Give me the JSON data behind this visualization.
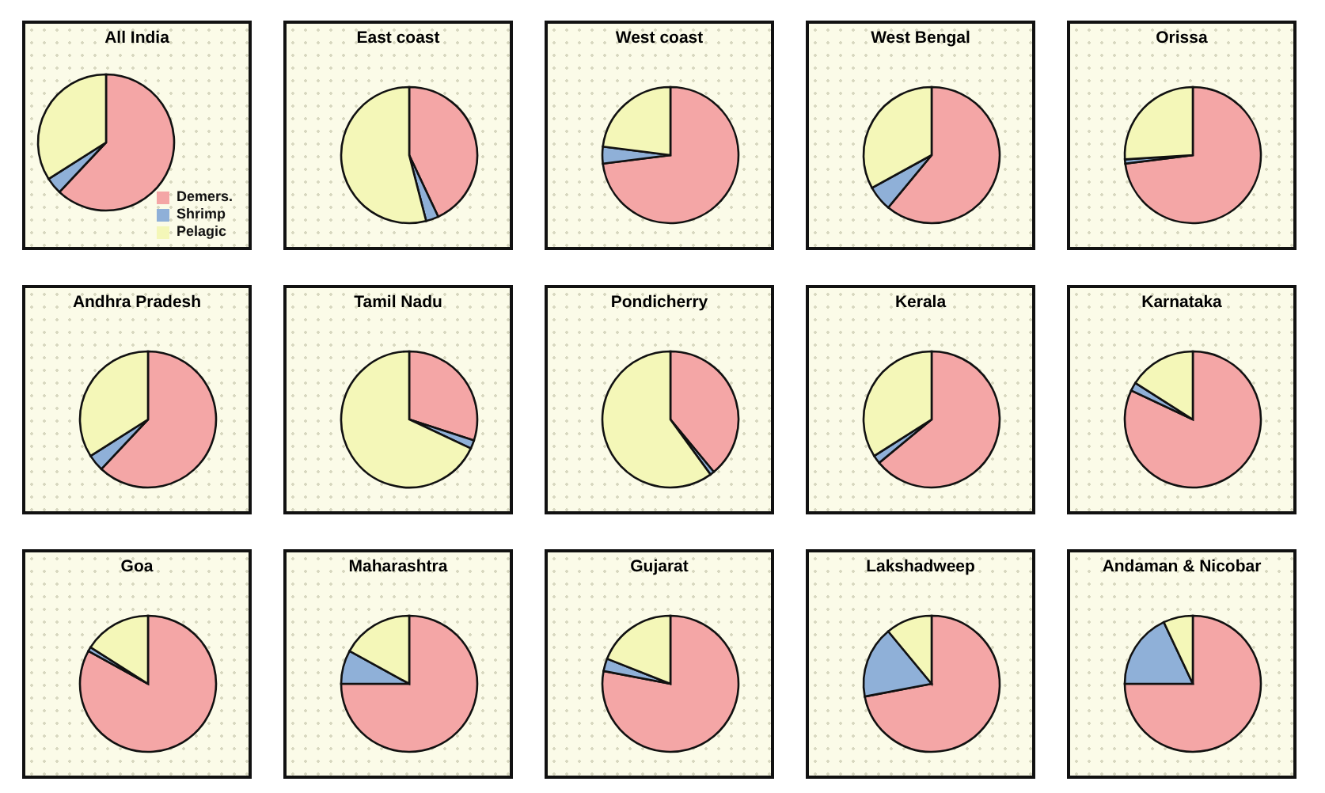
{
  "chart_data": [
    {
      "type": "pie",
      "title": "All India",
      "categories": [
        "Demers.",
        "Shrimp",
        "Pelagic"
      ],
      "values": [
        62,
        4,
        34
      ],
      "colors": [
        "#f4a6a6",
        "#8fb0d8",
        "#f4f7b8"
      ],
      "legend": "bottom right"
    },
    {
      "type": "pie",
      "title": "East coast",
      "values": [
        43,
        3,
        54
      ],
      "colors": [
        "#f4a6a6",
        "#8fb0d8",
        "#f4f7b8"
      ]
    },
    {
      "type": "pie",
      "title": "West coast",
      "values": [
        73,
        4,
        23
      ],
      "colors": [
        "#f4a6a6",
        "#8fb0d8",
        "#f4f7b8"
      ]
    },
    {
      "type": "pie",
      "title": "West Bengal",
      "values": [
        61,
        6,
        33
      ],
      "colors": [
        "#f4a6a6",
        "#8fb0d8",
        "#f4f7b8"
      ]
    },
    {
      "type": "pie",
      "title": "Orissa",
      "values": [
        73,
        1,
        26
      ],
      "colors": [
        "#f4a6a6",
        "#8fb0d8",
        "#f4f7b8"
      ]
    },
    {
      "type": "pie",
      "title": "Andhra Pradesh",
      "values": [
        62,
        4,
        34
      ],
      "colors": [
        "#f4a6a6",
        "#8fb0d8",
        "#f4f7b8"
      ]
    },
    {
      "type": "pie",
      "title": "Tamil Nadu",
      "values": [
        30,
        2,
        68
      ],
      "colors": [
        "#f4a6a6",
        "#8fb0d8",
        "#f4f7b8"
      ]
    },
    {
      "type": "pie",
      "title": "Pondicherry",
      "values": [
        39,
        1,
        60
      ],
      "colors": [
        "#f4a6a6",
        "#8fb0d8",
        "#f4f7b8"
      ]
    },
    {
      "type": "pie",
      "title": "Kerala",
      "values": [
        64,
        2,
        34
      ],
      "colors": [
        "#f4a6a6",
        "#8fb0d8",
        "#f4f7b8"
      ]
    },
    {
      "type": "pie",
      "title": "Karnataka",
      "values": [
        82,
        2,
        16
      ],
      "colors": [
        "#f4a6a6",
        "#8fb0d8",
        "#f4f7b8"
      ]
    },
    {
      "type": "pie",
      "title": "Goa",
      "values": [
        83,
        1,
        16
      ],
      "colors": [
        "#f4a6a6",
        "#8fb0d8",
        "#f4f7b8"
      ]
    },
    {
      "type": "pie",
      "title": "Maharashtra",
      "values": [
        75,
        8,
        17
      ],
      "colors": [
        "#f4a6a6",
        "#8fb0d8",
        "#f4f7b8"
      ]
    },
    {
      "type": "pie",
      "title": "Gujarat",
      "values": [
        78,
        3,
        19
      ],
      "colors": [
        "#f4a6a6",
        "#8fb0d8",
        "#f4f7b8"
      ]
    },
    {
      "type": "pie",
      "title": "Lakshadweep",
      "values": [
        72,
        17,
        11
      ],
      "colors": [
        "#f4a6a6",
        "#8fb0d8",
        "#f4f7b8"
      ]
    },
    {
      "type": "pie",
      "title": "Andaman & Nicobar",
      "values": [
        75,
        18,
        7
      ],
      "colors": [
        "#f4a6a6",
        "#8fb0d8",
        "#f4f7b8"
      ]
    }
  ]
}
